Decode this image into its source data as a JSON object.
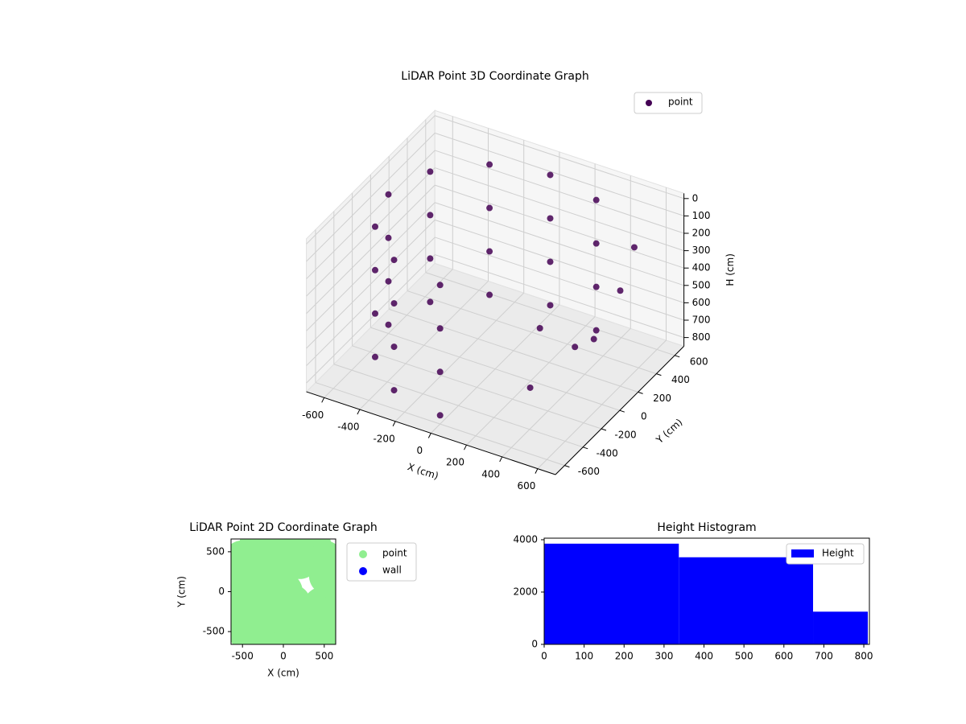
{
  "chart_data": [
    {
      "type": "scatter3d",
      "title": "LiDAR Point 3D Coordinate Graph",
      "xlabel": "X (cm)",
      "ylabel": "Y (cm)",
      "zlabel": "H (cm)",
      "xlim": [
        -700,
        700
      ],
      "ylim": [
        -700,
        700
      ],
      "zlim": [
        850,
        -30
      ],
      "xticks": [
        -600,
        -400,
        -200,
        0,
        200,
        400,
        600
      ],
      "yticks": [
        -600,
        -400,
        -200,
        0,
        200,
        400,
        600
      ],
      "zticks": [
        0,
        100,
        200,
        300,
        400,
        500,
        600,
        700,
        800
      ],
      "legend": "upper right",
      "grid": true,
      "series": [
        {
          "name": "point",
          "color": "#440154",
          "x": [
            300,
            0,
            -300,
            -520,
            -600,
            -520,
            -300,
            0,
            300,
            0,
            -300,
            -520,
            -600,
            -520,
            -300,
            0,
            300,
            0,
            -300,
            -520,
            -600,
            -520,
            -300,
            0,
            300,
            0,
            -300,
            -520,
            -600,
            -520,
            -300,
            0,
            200,
            400,
            500,
            600,
            300,
            550
          ],
          "y": [
            520,
            600,
            520,
            300,
            0,
            -300,
            -520,
            -600,
            520,
            600,
            520,
            300,
            0,
            -300,
            -520,
            -600,
            520,
            600,
            520,
            300,
            0,
            -300,
            -520,
            -600,
            520,
            600,
            520,
            300,
            0,
            -300,
            -520,
            -600,
            100,
            300,
            -100,
            200,
            -200,
            450
          ],
          "z": [
            50,
            50,
            50,
            50,
            50,
            50,
            50,
            50,
            300,
            300,
            300,
            300,
            300,
            300,
            300,
            300,
            550,
            550,
            550,
            550,
            550,
            550,
            550,
            550,
            800,
            800,
            800,
            800,
            800,
            800,
            800,
            800,
            600,
            700,
            500,
            300,
            750,
            200
          ]
        }
      ]
    },
    {
      "type": "scatter",
      "title": "LiDAR Point 2D Coordinate Graph",
      "xlabel": "X (cm)",
      "ylabel": "Y (cm)",
      "xlim": [
        -640,
        640
      ],
      "ylim": [
        -660,
        660
      ],
      "xticks": [
        -500,
        0,
        500
      ],
      "yticks": [
        -500,
        0,
        500
      ],
      "legend": "outside right",
      "series": [
        {
          "name": "point",
          "color": "#90ee90",
          "x": [
            -300,
            -150,
            50,
            200,
            350,
            500,
            550,
            480,
            600,
            -500,
            -560,
            -600,
            -580,
            -520,
            -420,
            -300,
            -150,
            0,
            150,
            300,
            450,
            550,
            -400,
            -300,
            -200,
            -100,
            100,
            200,
            350,
            -250,
            -100,
            -400,
            -200,
            0,
            0,
            -100,
            150,
            100,
            -300,
            200
          ],
          "y": [
            600,
            620,
            610,
            600,
            580,
            400,
            200,
            -180,
            -300,
            400,
            200,
            0,
            -200,
            -400,
            -530,
            -600,
            -620,
            -630,
            -620,
            -600,
            -620,
            -600,
            200,
            0,
            -200,
            -400,
            -400,
            -500,
            -500,
            300,
            200,
            -300,
            -450,
            -300,
            0,
            -100,
            -300,
            -150,
            450,
            400
          ]
        },
        {
          "name": "wall",
          "color": "#0000ff",
          "x": [],
          "y": []
        }
      ]
    },
    {
      "type": "histogram",
      "title": "Height Histogram",
      "bins": [
        0,
        337,
        673,
        810
      ],
      "values": [
        3850,
        3330,
        1250
      ],
      "xlim": [
        0,
        814
      ],
      "ylim": [
        0,
        4060
      ],
      "xticks": [
        0,
        100,
        200,
        300,
        400,
        500,
        600,
        700,
        800
      ],
      "yticks": [
        0,
        2000,
        4000
      ],
      "legend": "upper right",
      "series_name": "Height",
      "color": "#0000ff"
    }
  ]
}
